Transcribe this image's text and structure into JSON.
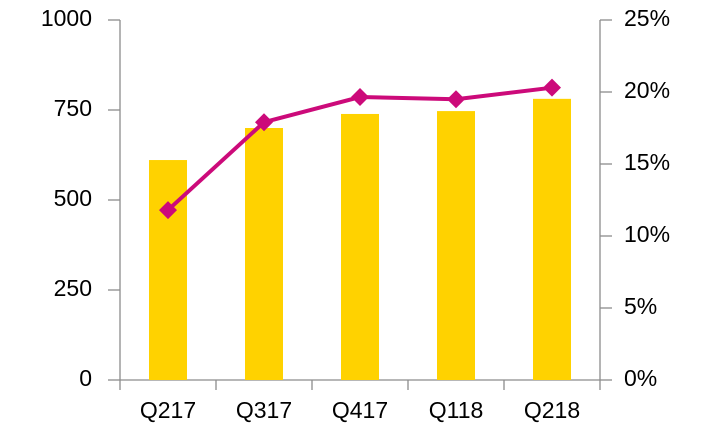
{
  "chart_data": {
    "type": "bar",
    "categories": [
      "Q217",
      "Q317",
      "Q417",
      "Q118",
      "Q218"
    ],
    "series": [
      {
        "type": "bar",
        "color": "#ffd200",
        "values": [
          611,
          700,
          739,
          747,
          781
        ]
      },
      {
        "type": "line",
        "color": "#cc0a7a",
        "axis": "y2",
        "values": [
          11.8,
          17.9,
          19.65,
          19.5,
          20.3
        ]
      }
    ],
    "ylim": [
      0,
      1000
    ],
    "yticks": [
      0,
      250,
      500,
      750,
      1000
    ],
    "y2lim": [
      0,
      25
    ],
    "y2ticks": [
      {
        "value": 0,
        "label": "0%"
      },
      {
        "value": 5,
        "label": "5%"
      },
      {
        "value": 10,
        "label": "10%"
      },
      {
        "value": 15,
        "label": "15%"
      },
      {
        "value": 20,
        "label": "20%"
      },
      {
        "value": 25,
        "label": "25%"
      }
    ],
    "grid": false
  }
}
